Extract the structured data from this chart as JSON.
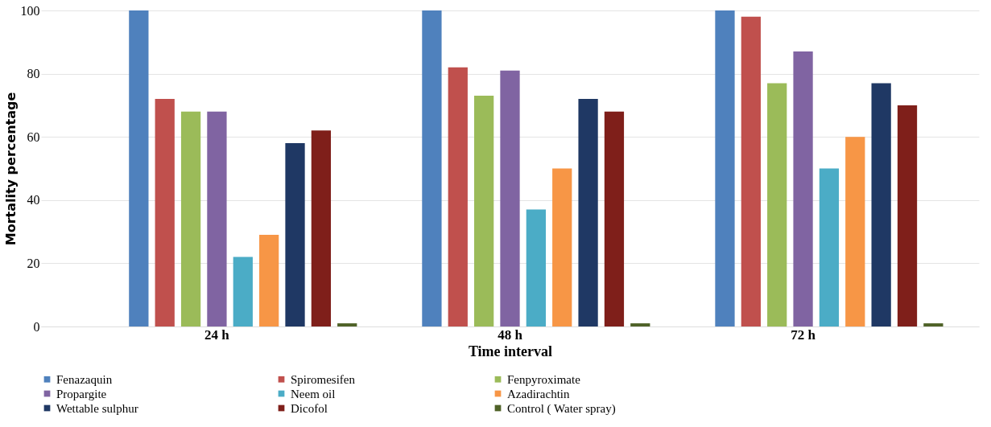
{
  "chart_data": {
    "type": "bar",
    "xlabel": "Time interval",
    "ylabel": "Mortality percentage",
    "categories": [
      "24 h",
      "48 h",
      "72 h"
    ],
    "ylim": [
      0,
      100
    ],
    "yticks": [
      0,
      20,
      40,
      60,
      80,
      100
    ],
    "grid": "y",
    "legend": "bottom",
    "series": [
      {
        "name": "Fenazaquin",
        "color": "#4f81bd",
        "values": [
          100,
          100,
          100
        ]
      },
      {
        "name": "Spiromesifen",
        "color": "#c0504d",
        "values": [
          72,
          82,
          98
        ]
      },
      {
        "name": "Fenpyroximate",
        "color": "#9bbb59",
        "values": [
          68,
          73,
          77
        ]
      },
      {
        "name": "Propargite",
        "color": "#8064a2",
        "values": [
          68,
          81,
          87
        ]
      },
      {
        "name": "Neem oil",
        "color": "#4bacc6",
        "values": [
          22,
          37,
          50
        ]
      },
      {
        "name": "Azadirachtin",
        "color": "#f79646",
        "values": [
          29,
          50,
          60
        ]
      },
      {
        "name": "Wettable sulphur",
        "color": "#1f3864",
        "values": [
          58,
          72,
          77
        ]
      },
      {
        "name": "Dicofol",
        "color": "#7f1f1a",
        "values": [
          62,
          68,
          70
        ]
      },
      {
        "name": "Control ( Water spray)",
        "color": "#4f6228",
        "values": [
          1,
          1,
          1
        ]
      }
    ]
  }
}
